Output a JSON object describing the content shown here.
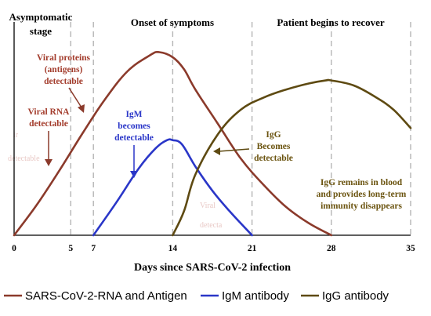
{
  "chart_data": {
    "type": "line",
    "xlabel": "Days since SARS-CoV-2 infection",
    "ylabel": "",
    "xlim": [
      0,
      35
    ],
    "ylim": [
      0,
      100
    ],
    "x_ticks": [
      0,
      5,
      7,
      14,
      21,
      28,
      35
    ],
    "grid": "dashed vertical lines at 5, 7, 14, 21, 28",
    "legend_position": "bottom",
    "phases": [
      {
        "label_line1": "Asymptomatic",
        "label_line2": "stage"
      },
      {
        "label_line1": "Onset of symptoms",
        "label_line2": ""
      },
      {
        "label_line1": "Patient begins to recover",
        "label_line2": ""
      }
    ],
    "series": [
      {
        "name": "SARS-CoV-2-RNA and Antigen",
        "color": "#8b3a2b",
        "points": [
          [
            0,
            0
          ],
          [
            2,
            15
          ],
          [
            4,
            32
          ],
          [
            6,
            50
          ],
          [
            8,
            67
          ],
          [
            10,
            81
          ],
          [
            12,
            89
          ],
          [
            12.8,
            90.5
          ],
          [
            14,
            88
          ],
          [
            15,
            82
          ],
          [
            16,
            72
          ],
          [
            18,
            55
          ],
          [
            20,
            38
          ],
          [
            22,
            25
          ],
          [
            24,
            14
          ],
          [
            26,
            6
          ],
          [
            28,
            0
          ]
        ]
      },
      {
        "name": "IgM antibody",
        "color": "#2a36c8",
        "points": [
          [
            7,
            0
          ],
          [
            9,
            16
          ],
          [
            11,
            33
          ],
          [
            12.5,
            43
          ],
          [
            13.5,
            47
          ],
          [
            14,
            47
          ],
          [
            14.8,
            45
          ],
          [
            16,
            34
          ],
          [
            17.5,
            22
          ],
          [
            19,
            12
          ],
          [
            21,
            0
          ]
        ]
      },
      {
        "name": "IgG antibody",
        "color": "#5e4a12",
        "points": [
          [
            14,
            0
          ],
          [
            15,
            12
          ],
          [
            16,
            30
          ],
          [
            18,
            50
          ],
          [
            20,
            62
          ],
          [
            22,
            68
          ],
          [
            24,
            72
          ],
          [
            26,
            75
          ],
          [
            27.5,
            76.5
          ],
          [
            28,
            76.5
          ],
          [
            30,
            74
          ],
          [
            32,
            68
          ],
          [
            33.5,
            62
          ],
          [
            35,
            53
          ]
        ]
      }
    ],
    "annotations": [
      {
        "id": "viral-rna",
        "color": "#a33c2c",
        "lines": [
          "Viral RNA",
          "detectable"
        ]
      },
      {
        "id": "viral-proteins",
        "color": "#a33c2c",
        "lines": [
          "Viral proteins",
          "(antigens)",
          "detectable"
        ]
      },
      {
        "id": "igm",
        "color": "#2a36c8",
        "lines": [
          "IgM",
          "becomes",
          "detectable"
        ]
      },
      {
        "id": "igg",
        "color": "#6b5410",
        "lines": [
          "IgG",
          "Becomes",
          "detectable"
        ]
      },
      {
        "id": "igg-remains",
        "color": "#6b5410",
        "lines": [
          "IgG remains in blood",
          "and provides long-term",
          "immunity disappears"
        ]
      }
    ]
  }
}
